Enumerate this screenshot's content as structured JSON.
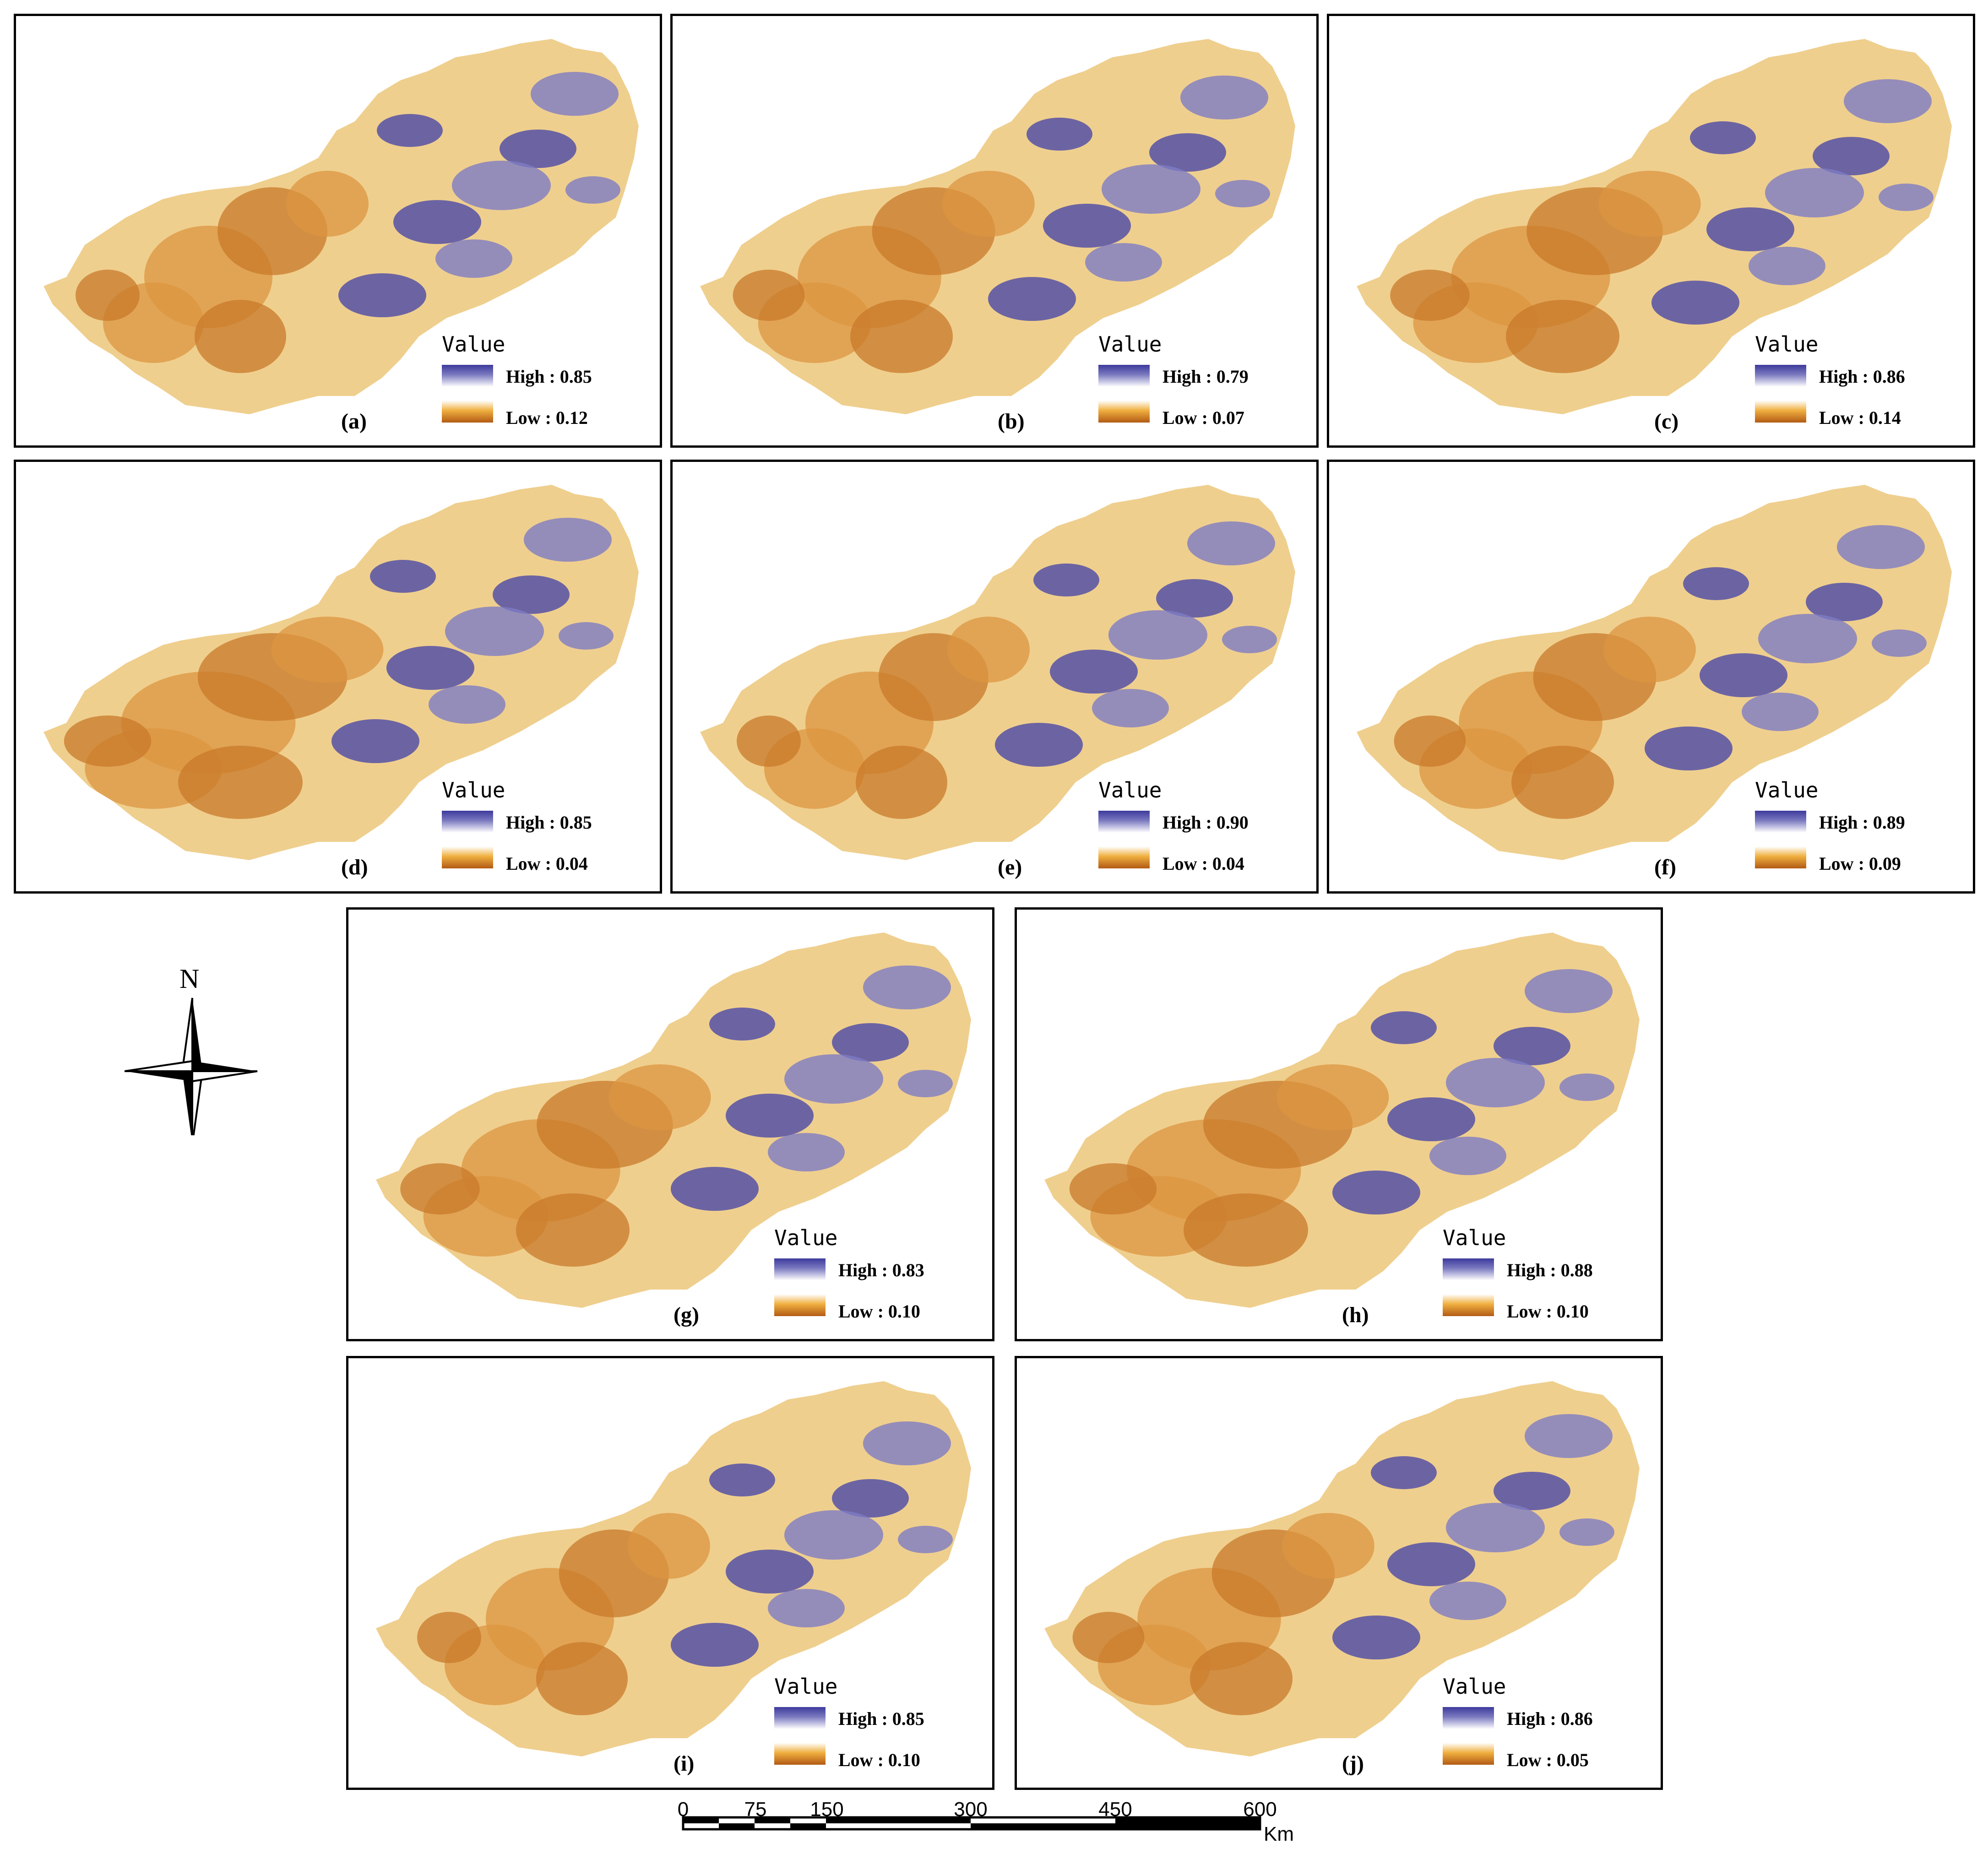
{
  "legend_title": "Value",
  "panels": [
    {
      "label": "(a)",
      "high": "High : 0.85",
      "low": "Low : 0.12"
    },
    {
      "label": "(b)",
      "high": "High : 0.79",
      "low": "Low : 0.07"
    },
    {
      "label": "(c)",
      "high": "High : 0.86",
      "low": "Low : 0.14"
    },
    {
      "label": "(d)",
      "high": "High : 0.85",
      "low": "Low : 0.04"
    },
    {
      "label": "(e)",
      "high": "High : 0.90",
      "low": "Low : 0.04"
    },
    {
      "label": "(f)",
      "high": "High : 0.89",
      "low": "Low : 0.09"
    },
    {
      "label": "(g)",
      "high": "High : 0.83",
      "low": "Low : 0.10"
    },
    {
      "label": "(h)",
      "high": "High : 0.88",
      "low": "Low : 0.10"
    },
    {
      "label": "(i)",
      "high": "High : 0.85",
      "low": "Low : 0.10"
    },
    {
      "label": "(j)",
      "high": "High : 0.86",
      "low": "Low : 0.05"
    }
  ],
  "colors": {
    "high": "#3d3a9c",
    "mid": "#ffffff",
    "low": "#b25a14"
  },
  "north_arrow": {
    "label": "N",
    "icon": "north-arrow-icon"
  },
  "scale_bar": {
    "ticks": [
      "0",
      "75",
      "150",
      "300",
      "450",
      "600"
    ],
    "unit": "Km"
  }
}
